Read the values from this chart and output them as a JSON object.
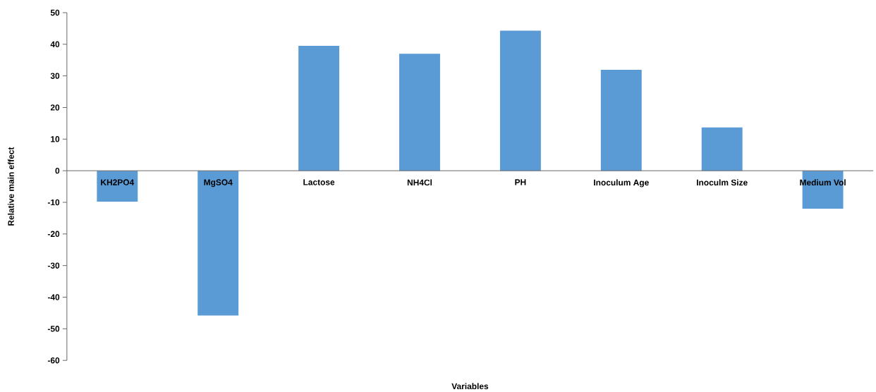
{
  "chart_data": {
    "type": "bar",
    "xlabel": "Variables",
    "ylabel": "Relative main effect",
    "categories": [
      "KH2PO4",
      "MgSO4",
      "Lactose",
      "NH4Cl",
      "PH",
      "Inoculum Age",
      "Inoculm Size",
      "Medium Vol"
    ],
    "values": [
      -9.8,
      -45.8,
      39.5,
      37.0,
      44.3,
      31.9,
      13.7,
      -12.0
    ],
    "color": "#5b9bd5",
    "ylim": [
      -60,
      50
    ],
    "yticks": [
      -60,
      -50,
      -40,
      -30,
      -20,
      -10,
      0,
      10,
      20,
      30,
      40,
      50
    ],
    "grid": false
  }
}
